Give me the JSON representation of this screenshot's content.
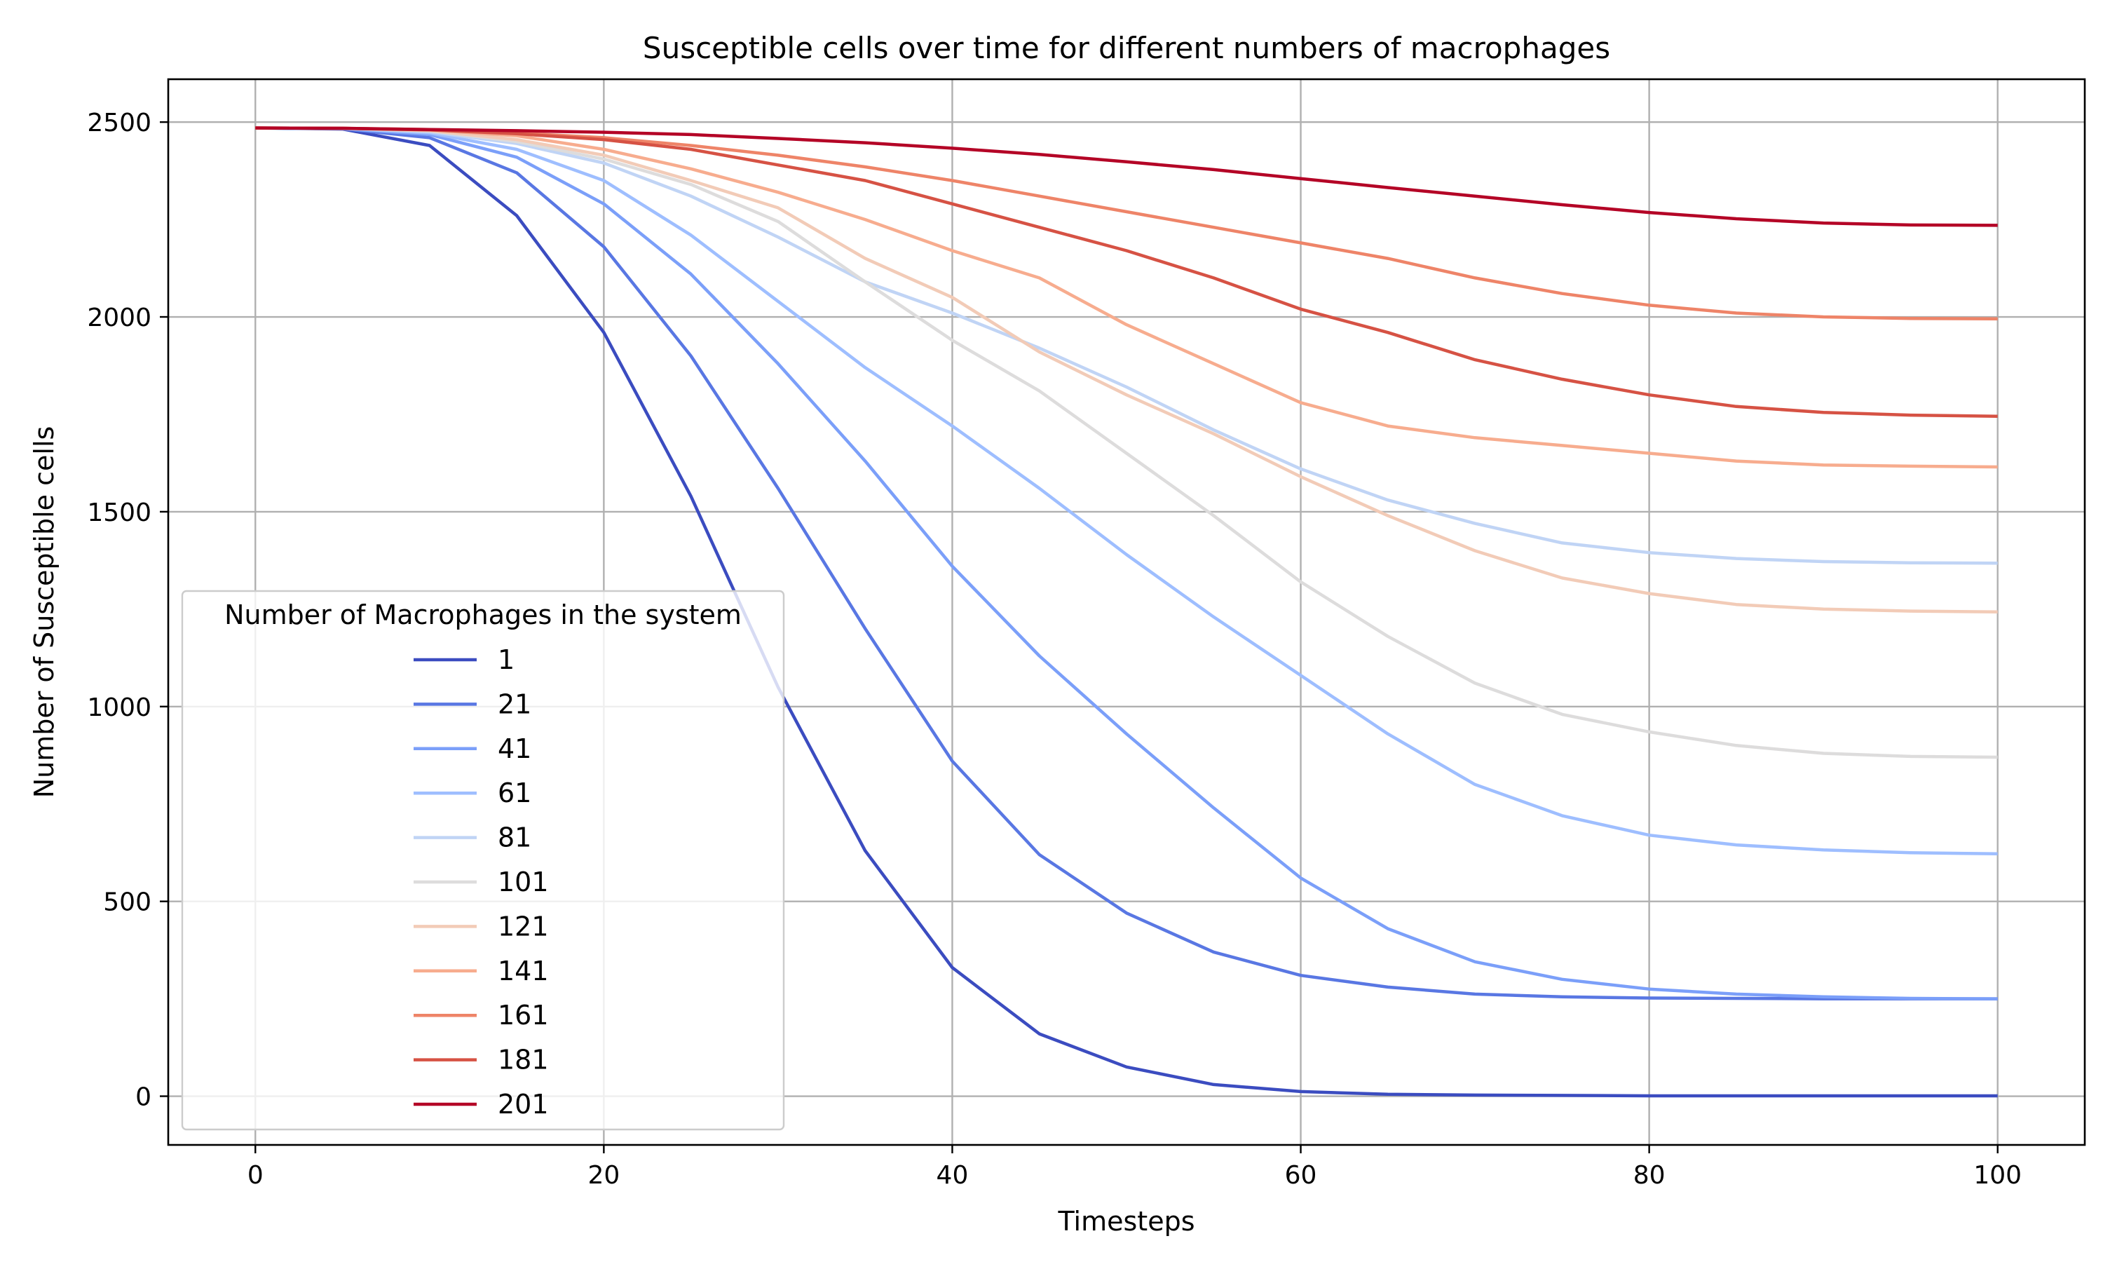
{
  "chart_data": {
    "type": "line",
    "title": "Susceptible cells over time for different numbers of macrophages",
    "xlabel": "Timesteps",
    "ylabel": "Number of Susceptible cells",
    "xlim": [
      -5,
      105
    ],
    "ylim": [
      -125,
      2610
    ],
    "xticks": [
      0,
      20,
      40,
      60,
      80,
      100
    ],
    "yticks": [
      0,
      500,
      1000,
      1500,
      2000,
      2500
    ],
    "grid": true,
    "legend": {
      "title": "Number of Macrophages in the system",
      "placement": "lower-left"
    },
    "x": [
      0,
      5,
      10,
      15,
      20,
      25,
      30,
      35,
      40,
      45,
      50,
      55,
      60,
      65,
      70,
      75,
      80,
      85,
      90,
      95,
      100
    ],
    "series": [
      {
        "name": "1",
        "color": "#3b4cc0",
        "values": [
          2485,
          2482,
          2440,
          2260,
          1960,
          1540,
          1050,
          630,
          330,
          160,
          75,
          30,
          12,
          5,
          3,
          2,
          1,
          1,
          1,
          1,
          1
        ]
      },
      {
        "name": "21",
        "color": "#5977e3",
        "values": [
          2485,
          2483,
          2460,
          2370,
          2180,
          1900,
          1560,
          1200,
          860,
          620,
          470,
          370,
          310,
          280,
          262,
          255,
          252,
          251,
          250,
          250,
          250
        ]
      },
      {
        "name": "41",
        "color": "#7b9ff9",
        "values": [
          2485,
          2483,
          2468,
          2410,
          2290,
          2110,
          1880,
          1630,
          1360,
          1130,
          930,
          740,
          560,
          430,
          345,
          300,
          275,
          262,
          255,
          251,
          250
        ]
      },
      {
        "name": "61",
        "color": "#9ebeff",
        "values": [
          2485,
          2484,
          2472,
          2430,
          2350,
          2210,
          2040,
          1870,
          1720,
          1560,
          1390,
          1230,
          1080,
          930,
          800,
          720,
          670,
          645,
          632,
          625,
          622
        ]
      },
      {
        "name": "81",
        "color": "#c0d4f5",
        "values": [
          2485,
          2484,
          2475,
          2445,
          2395,
          2310,
          2205,
          2090,
          2010,
          1920,
          1820,
          1710,
          1610,
          1530,
          1470,
          1420,
          1395,
          1380,
          1372,
          1369,
          1368
        ]
      },
      {
        "name": "101",
        "color": "#dddcdc",
        "values": [
          2485,
          2484,
          2478,
          2450,
          2405,
          2340,
          2245,
          2090,
          1940,
          1810,
          1650,
          1490,
          1320,
          1180,
          1060,
          980,
          935,
          900,
          880,
          872,
          870
        ]
      },
      {
        "name": "121",
        "color": "#f2cbb7",
        "values": [
          2485,
          2484,
          2478,
          2455,
          2415,
          2350,
          2280,
          2150,
          2050,
          1910,
          1800,
          1700,
          1590,
          1490,
          1400,
          1330,
          1290,
          1262,
          1250,
          1245,
          1243
        ]
      },
      {
        "name": "141",
        "color": "#f7ac8e",
        "values": [
          2485,
          2484,
          2480,
          2465,
          2430,
          2380,
          2320,
          2250,
          2170,
          2100,
          1980,
          1880,
          1780,
          1720,
          1690,
          1670,
          1650,
          1630,
          1620,
          1617,
          1615
        ]
      },
      {
        "name": "161",
        "color": "#ee8468",
        "values": [
          2485,
          2484,
          2481,
          2472,
          2460,
          2440,
          2415,
          2385,
          2350,
          2310,
          2270,
          2230,
          2190,
          2150,
          2100,
          2060,
          2030,
          2010,
          2000,
          1996,
          1995
        ]
      },
      {
        "name": "181",
        "color": "#d65244",
        "values": [
          2485,
          2484,
          2480,
          2470,
          2455,
          2430,
          2390,
          2350,
          2290,
          2230,
          2170,
          2100,
          2020,
          1960,
          1890,
          1840,
          1800,
          1770,
          1755,
          1748,
          1745
        ]
      },
      {
        "name": "201",
        "color": "#b40426",
        "values": [
          2485,
          2484,
          2481,
          2478,
          2474,
          2468,
          2458,
          2447,
          2433,
          2417,
          2398,
          2378,
          2355,
          2332,
          2310,
          2288,
          2268,
          2252,
          2241,
          2236,
          2235
        ]
      }
    ]
  }
}
